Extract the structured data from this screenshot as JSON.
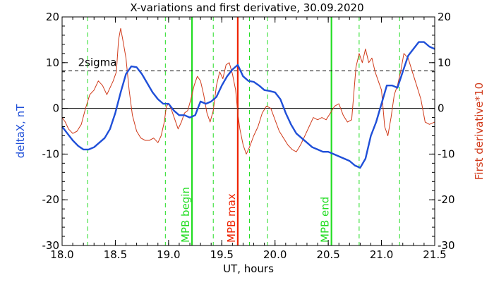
{
  "chart_data": {
    "type": "line",
    "title": "X-variations and first derivative, 30.09.2020",
    "xlabel": "UT, hours",
    "ylabel_left": "deltaX, nT",
    "ylabel_right": "First derivative*10",
    "xlim": [
      18.0,
      21.5
    ],
    "ylim_left": [
      -30,
      20
    ],
    "ylim_right": [
      -30,
      20
    ],
    "x_ticks": [
      "18.0",
      "18.5",
      "19.0",
      "19.5",
      "20.0",
      "20.5",
      "21.0",
      "21.5"
    ],
    "x_tick_values": [
      18.0,
      18.5,
      19.0,
      19.5,
      20.0,
      20.5,
      21.0,
      21.5
    ],
    "y_ticks": [
      "-30",
      "-20",
      "-10",
      "0",
      "10",
      "20"
    ],
    "y_tick_values": [
      -30,
      -20,
      -10,
      0,
      10,
      20
    ],
    "threshold": {
      "label": "2sigma",
      "value": 8.2
    },
    "zero_line": 0,
    "colors": {
      "deltaX": "#1f4fd8",
      "derivative": "#d03a1a",
      "mpb": "#22dd22",
      "max": "#ee2200",
      "axes": "#000000"
    },
    "dashed_verticals_x": [
      18.24,
      18.97,
      19.42,
      19.76,
      19.93,
      20.79,
      21.17
    ],
    "markers": [
      {
        "label": "MPB begin",
        "x": 19.22,
        "color": "#22dd22"
      },
      {
        "label": "MPB max",
        "x": 19.65,
        "color": "#ee2200"
      },
      {
        "label": "MPB end",
        "x": 20.53,
        "color": "#22dd22"
      }
    ],
    "series": [
      {
        "name": "deltaX",
        "axis": "left",
        "x": [
          18.0,
          18.05,
          18.1,
          18.15,
          18.2,
          18.25,
          18.3,
          18.35,
          18.4,
          18.45,
          18.5,
          18.55,
          18.6,
          18.65,
          18.7,
          18.75,
          18.8,
          18.85,
          18.9,
          18.95,
          19.0,
          19.05,
          19.1,
          19.15,
          19.2,
          19.25,
          19.3,
          19.35,
          19.4,
          19.45,
          19.5,
          19.55,
          19.6,
          19.65,
          19.7,
          19.75,
          19.8,
          19.85,
          19.9,
          19.95,
          20.0,
          20.05,
          20.1,
          20.15,
          20.2,
          20.25,
          20.3,
          20.35,
          20.4,
          20.45,
          20.5,
          20.55,
          20.6,
          20.65,
          20.7,
          20.75,
          20.8,
          20.85,
          20.9,
          20.95,
          21.0,
          21.05,
          21.1,
          21.15,
          21.2,
          21.25,
          21.3,
          21.35,
          21.4,
          21.45,
          21.5
        ],
        "y": [
          -4.0,
          -5.5,
          -7.0,
          -8.2,
          -9.0,
          -9.0,
          -8.5,
          -7.5,
          -6.5,
          -4.5,
          -1.0,
          3.5,
          7.5,
          9.2,
          9.0,
          7.5,
          5.5,
          3.5,
          2.0,
          1.0,
          1.0,
          -0.5,
          -1.5,
          -1.5,
          -2.0,
          -1.5,
          1.5,
          1.0,
          1.5,
          2.5,
          5.0,
          7.0,
          8.5,
          9.5,
          7.0,
          6.0,
          5.8,
          5.0,
          4.0,
          3.8,
          3.5,
          2.0,
          -1.0,
          -3.5,
          -5.5,
          -6.5,
          -7.5,
          -8.5,
          -9.0,
          -9.5,
          -9.5,
          -10.0,
          -10.5,
          -11.0,
          -11.5,
          -12.5,
          -13.0,
          -11.0,
          -6.0,
          -3.0,
          1.0,
          5.0,
          5.0,
          4.5,
          8.0,
          11.5,
          13.0,
          14.5,
          14.5,
          13.5,
          13.0
        ]
      },
      {
        "name": "First derivative*10",
        "axis": "right",
        "x": [
          18.0,
          18.03,
          18.06,
          18.1,
          18.14,
          18.18,
          18.22,
          18.26,
          18.3,
          18.34,
          18.38,
          18.42,
          18.45,
          18.48,
          18.51,
          18.53,
          18.55,
          18.57,
          18.6,
          18.63,
          18.66,
          18.7,
          18.74,
          18.78,
          18.82,
          18.86,
          18.9,
          18.93,
          18.96,
          18.98,
          19.0,
          19.03,
          19.06,
          19.09,
          19.12,
          19.15,
          19.18,
          19.21,
          19.24,
          19.27,
          19.3,
          19.33,
          19.36,
          19.39,
          19.42,
          19.45,
          19.48,
          19.51,
          19.54,
          19.57,
          19.6,
          19.63,
          19.65,
          19.67,
          19.7,
          19.73,
          19.76,
          19.8,
          19.84,
          19.88,
          19.92,
          19.96,
          20.0,
          20.04,
          20.08,
          20.12,
          20.16,
          20.2,
          20.24,
          20.28,
          20.32,
          20.36,
          20.4,
          20.44,
          20.48,
          20.52,
          20.56,
          20.6,
          20.64,
          20.68,
          20.72,
          20.76,
          20.79,
          20.82,
          20.85,
          20.88,
          20.91,
          20.94,
          20.97,
          21.0,
          21.03,
          21.06,
          21.09,
          21.12,
          21.15,
          21.18,
          21.21,
          21.25,
          21.29,
          21.33,
          21.37,
          21.41,
          21.45,
          21.5
        ],
        "y": [
          -2.0,
          -3.0,
          -4.5,
          -5.5,
          -5.0,
          -3.5,
          0.0,
          3.0,
          4.0,
          6.0,
          5.0,
          3.0,
          4.5,
          6.0,
          8.0,
          15.0,
          17.5,
          15.0,
          11.0,
          4.0,
          -1.5,
          -5.0,
          -6.5,
          -7.0,
          -7.0,
          -6.5,
          -7.5,
          -6.0,
          -3.0,
          0.5,
          1.0,
          -0.5,
          -2.5,
          -4.5,
          -3.0,
          -1.0,
          -0.5,
          2.0,
          5.0,
          7.0,
          6.0,
          3.0,
          -1.0,
          -3.0,
          -0.5,
          5.0,
          8.0,
          6.5,
          9.5,
          10.0,
          7.5,
          4.0,
          -1.0,
          -4.5,
          -8.0,
          -10.0,
          -8.5,
          -6.0,
          -4.0,
          -1.0,
          0.5,
          0.0,
          -2.5,
          -5.0,
          -6.5,
          -8.0,
          -9.0,
          -9.5,
          -8.0,
          -6.0,
          -4.0,
          -2.0,
          -2.5,
          -2.0,
          -2.5,
          -1.0,
          0.5,
          1.0,
          -1.5,
          -3.0,
          -2.5,
          9.0,
          12.0,
          10.0,
          13.0,
          10.0,
          11.0,
          8.0,
          6.0,
          4.0,
          -4.0,
          -6.0,
          -2.0,
          3.0,
          5.0,
          8.0,
          12.0,
          11.0,
          8.0,
          5.0,
          2.0,
          -3.0,
          -3.5,
          -3.0
        ]
      }
    ]
  }
}
